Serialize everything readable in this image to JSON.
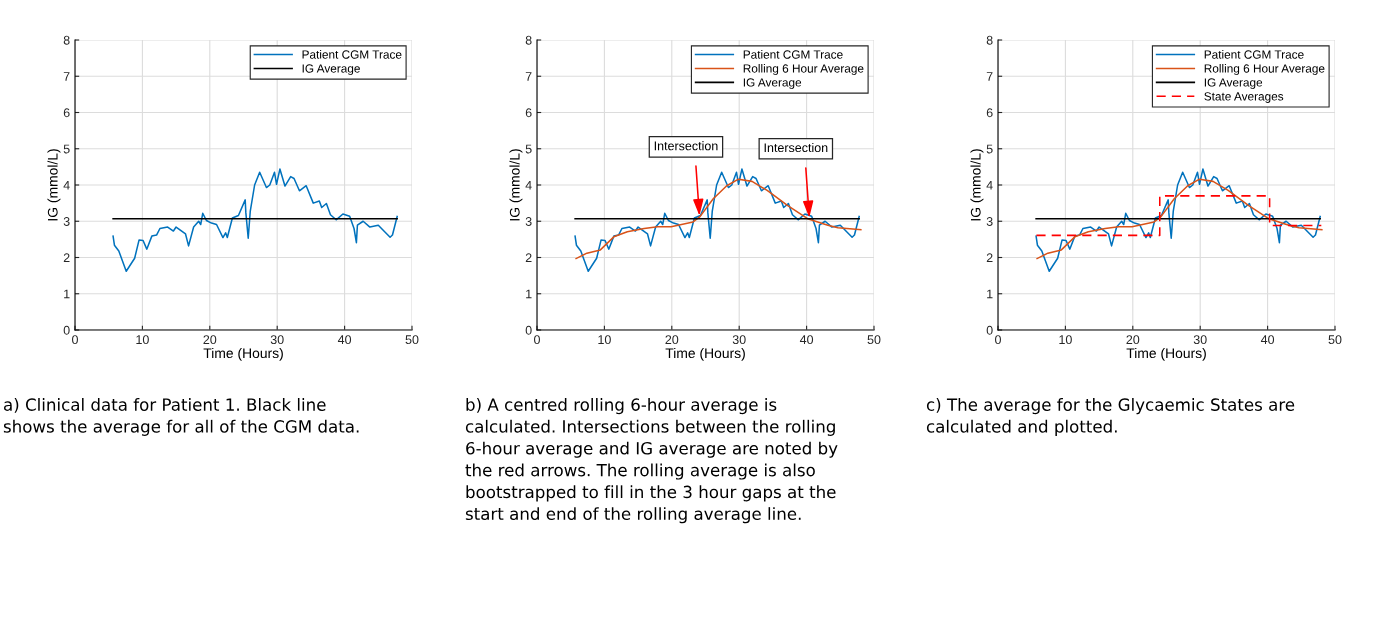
{
  "chart_data": [
    {
      "type": "line",
      "xlabel": "Time (Hours)",
      "ylabel": "IG (mmol/L)",
      "xlim": [
        0,
        50
      ],
      "xticks": [
        0,
        10,
        20,
        30,
        40,
        50
      ],
      "ylim": [
        0,
        8
      ],
      "yticks": [
        0,
        1,
        2,
        3,
        4,
        5,
        6,
        7,
        8
      ],
      "grid": true,
      "legend": "top right",
      "series": [
        {
          "name": "Patient CGM Trace",
          "color": "#0072bd",
          "x": [
            5.65,
            5.85,
            6.5,
            7.6,
            8.85,
            9.5,
            10.1,
            10.65,
            11.4,
            12.1,
            12.6,
            13.75,
            14.6,
            15.0,
            16.4,
            16.85,
            17.6,
            18.35,
            18.65,
            18.95,
            19.5,
            20.25,
            21.0,
            21.95,
            22.35,
            22.6,
            23.35,
            24.25,
            25.25,
            25.35,
            25.7,
            26.0,
            26.65,
            27.4,
            28.4,
            28.9,
            29.6,
            29.9,
            30.4,
            31.15,
            32.0,
            32.5,
            33.3,
            34.3,
            35.35,
            36.25,
            36.6,
            37.3,
            37.9,
            38.75,
            39.75,
            40.75,
            41.4,
            41.75,
            41.9,
            42.75,
            43.75,
            45.0,
            46.75,
            47.1,
            47.8
          ],
          "values": [
            2.59,
            2.34,
            2.18,
            1.62,
            1.98,
            2.48,
            2.47,
            2.23,
            2.59,
            2.62,
            2.8,
            2.84,
            2.73,
            2.84,
            2.65,
            2.32,
            2.84,
            3.0,
            2.91,
            3.22,
            3.02,
            2.95,
            2.91,
            2.55,
            2.68,
            2.55,
            3.09,
            3.16,
            3.59,
            3.23,
            2.53,
            3.27,
            4.0,
            4.35,
            3.93,
            4.0,
            4.35,
            4.02,
            4.44,
            3.97,
            4.23,
            4.18,
            3.84,
            3.98,
            3.5,
            3.56,
            3.38,
            3.49,
            3.18,
            3.04,
            3.2,
            3.14,
            2.8,
            2.41,
            2.89,
            3.0,
            2.84,
            2.89,
            2.56,
            2.62,
            3.13
          ]
        },
        {
          "name": "IG Average",
          "color": "#000000",
          "x": [
            5.65,
            47.8
          ],
          "values": [
            3.07,
            3.07
          ]
        }
      ],
      "annotations": [
        "a) Clinical data for Patient 1. Black line shows the average for all of the CGM data."
      ]
    },
    {
      "type": "line",
      "xlabel": "Time (Hours)",
      "ylabel": "IG (mmol/L)",
      "xlim": [
        0,
        50
      ],
      "xticks": [
        0,
        10,
        20,
        30,
        40,
        50
      ],
      "ylim": [
        0,
        8
      ],
      "yticks": [
        0,
        1,
        2,
        3,
        4,
        5,
        6,
        7,
        8
      ],
      "grid": true,
      "legend": "top right",
      "series": [
        {
          "name": "Patient CGM Trace",
          "color": "#0072bd",
          "x": [
            5.65,
            5.85,
            6.5,
            7.6,
            8.85,
            9.5,
            10.1,
            10.65,
            11.4,
            12.1,
            12.6,
            13.75,
            14.6,
            15.0,
            16.4,
            16.85,
            17.6,
            18.35,
            18.65,
            18.95,
            19.5,
            20.25,
            21.0,
            21.95,
            22.35,
            22.6,
            23.35,
            24.25,
            25.25,
            25.35,
            25.7,
            26.0,
            26.65,
            27.4,
            28.4,
            28.9,
            29.6,
            29.9,
            30.4,
            31.15,
            32.0,
            32.5,
            33.3,
            34.3,
            35.35,
            36.25,
            36.6,
            37.3,
            37.9,
            38.75,
            39.75,
            40.75,
            41.4,
            41.75,
            41.9,
            42.75,
            43.75,
            45.0,
            46.75,
            47.1,
            47.8
          ],
          "values": [
            2.59,
            2.34,
            2.18,
            1.62,
            1.98,
            2.48,
            2.47,
            2.23,
            2.59,
            2.62,
            2.8,
            2.84,
            2.73,
            2.84,
            2.65,
            2.32,
            2.84,
            3.0,
            2.91,
            3.22,
            3.02,
            2.95,
            2.91,
            2.55,
            2.68,
            2.55,
            3.09,
            3.16,
            3.59,
            3.23,
            2.53,
            3.27,
            4.0,
            4.35,
            3.93,
            4.0,
            4.35,
            4.02,
            4.44,
            3.97,
            4.23,
            4.18,
            3.84,
            3.98,
            3.5,
            3.56,
            3.38,
            3.49,
            3.18,
            3.04,
            3.2,
            3.14,
            2.8,
            2.41,
            2.89,
            3.0,
            2.84,
            2.89,
            2.56,
            2.62,
            3.13
          ]
        },
        {
          "name": "Rolling 6 Hour Average",
          "color": "#d95319",
          "x": [
            5.8,
            7.4,
            9.4,
            11.4,
            13.4,
            15.9,
            17.9,
            19.9,
            23.15,
            24.15,
            26.15,
            28.15,
            29.9,
            31.9,
            34.15,
            37.15,
            40.15,
            43.15,
            44.65,
            48.05
          ],
          "values": [
            1.97,
            2.12,
            2.21,
            2.57,
            2.71,
            2.8,
            2.85,
            2.85,
            2.98,
            3.12,
            3.62,
            3.98,
            4.16,
            4.1,
            3.85,
            3.44,
            3.07,
            2.89,
            2.82,
            2.77
          ]
        },
        {
          "name": "IG Average",
          "color": "#000000",
          "x": [
            5.65,
            47.8
          ],
          "values": [
            3.07,
            3.07
          ]
        }
      ],
      "annotations": [
        {
          "text": "Intersection",
          "x": 24.1,
          "y": 3.15
        },
        {
          "text": "Intersection",
          "x": 40.4,
          "y": 3.1
        },
        "b) A centred rolling 6-hour average is calculated. Intersections between the rolling 6-hour average and IG average are noted by the red arrows. The rolling average is also bootstrapped to fill in the 3 hour gaps at the start and end of the rolling average line."
      ]
    },
    {
      "type": "line",
      "xlabel": "Time (Hours)",
      "ylabel": "IG (mmol/L)",
      "xlim": [
        0,
        50
      ],
      "xticks": [
        0,
        10,
        20,
        30,
        40,
        50
      ],
      "ylim": [
        0,
        8
      ],
      "yticks": [
        0,
        1,
        2,
        3,
        4,
        5,
        6,
        7,
        8
      ],
      "grid": true,
      "legend": "top right",
      "series": [
        {
          "name": "Patient CGM Trace",
          "color": "#0072bd",
          "x": [
            5.65,
            5.85,
            6.5,
            7.6,
            8.85,
            9.5,
            10.1,
            10.65,
            11.4,
            12.1,
            12.6,
            13.75,
            14.6,
            15.0,
            16.4,
            16.85,
            17.6,
            18.35,
            18.65,
            18.95,
            19.5,
            20.25,
            21.0,
            21.95,
            22.35,
            22.6,
            23.35,
            24.25,
            25.25,
            25.35,
            25.7,
            26.0,
            26.65,
            27.4,
            28.4,
            28.9,
            29.6,
            29.9,
            30.4,
            31.15,
            32.0,
            32.5,
            33.3,
            34.3,
            35.35,
            36.25,
            36.6,
            37.3,
            37.9,
            38.75,
            39.75,
            40.75,
            41.4,
            41.75,
            41.9,
            42.75,
            43.75,
            45.0,
            46.75,
            47.1,
            47.8
          ],
          "values": [
            2.59,
            2.34,
            2.18,
            1.62,
            1.98,
            2.48,
            2.47,
            2.23,
            2.59,
            2.62,
            2.8,
            2.84,
            2.73,
            2.84,
            2.65,
            2.32,
            2.84,
            3.0,
            2.91,
            3.22,
            3.02,
            2.95,
            2.91,
            2.55,
            2.68,
            2.55,
            3.09,
            3.16,
            3.59,
            3.23,
            2.53,
            3.27,
            4.0,
            4.35,
            3.93,
            4.0,
            4.35,
            4.02,
            4.44,
            3.97,
            4.23,
            4.18,
            3.84,
            3.98,
            3.5,
            3.56,
            3.38,
            3.49,
            3.18,
            3.04,
            3.2,
            3.14,
            2.8,
            2.41,
            2.89,
            3.0,
            2.84,
            2.89,
            2.56,
            2.62,
            3.13
          ]
        },
        {
          "name": "Rolling 6 Hour Average",
          "color": "#d95319",
          "x": [
            5.8,
            7.4,
            9.4,
            11.4,
            13.4,
            15.9,
            17.9,
            19.9,
            23.15,
            24.15,
            26.15,
            28.15,
            29.9,
            31.9,
            34.15,
            37.15,
            40.15,
            43.15,
            44.65,
            48.05
          ],
          "values": [
            1.97,
            2.12,
            2.21,
            2.57,
            2.71,
            2.8,
            2.85,
            2.85,
            2.98,
            3.12,
            3.62,
            3.98,
            4.16,
            4.1,
            3.85,
            3.44,
            3.07,
            2.89,
            2.82,
            2.77
          ]
        },
        {
          "name": "IG Average",
          "color": "#000000",
          "x": [
            5.65,
            47.8
          ],
          "values": [
            3.07,
            3.07
          ]
        },
        {
          "name": "State Averages",
          "color": "#ff0000",
          "line_style": "dashed",
          "x": [
            5.7,
            24.0,
            24.0,
            40.3,
            40.3,
            47.97
          ],
          "values": [
            2.61,
            2.61,
            3.7,
            3.7,
            2.88,
            2.88
          ]
        }
      ],
      "annotations": [
        "c) The average for the Glycaemic States are calculated and plotted."
      ]
    }
  ]
}
